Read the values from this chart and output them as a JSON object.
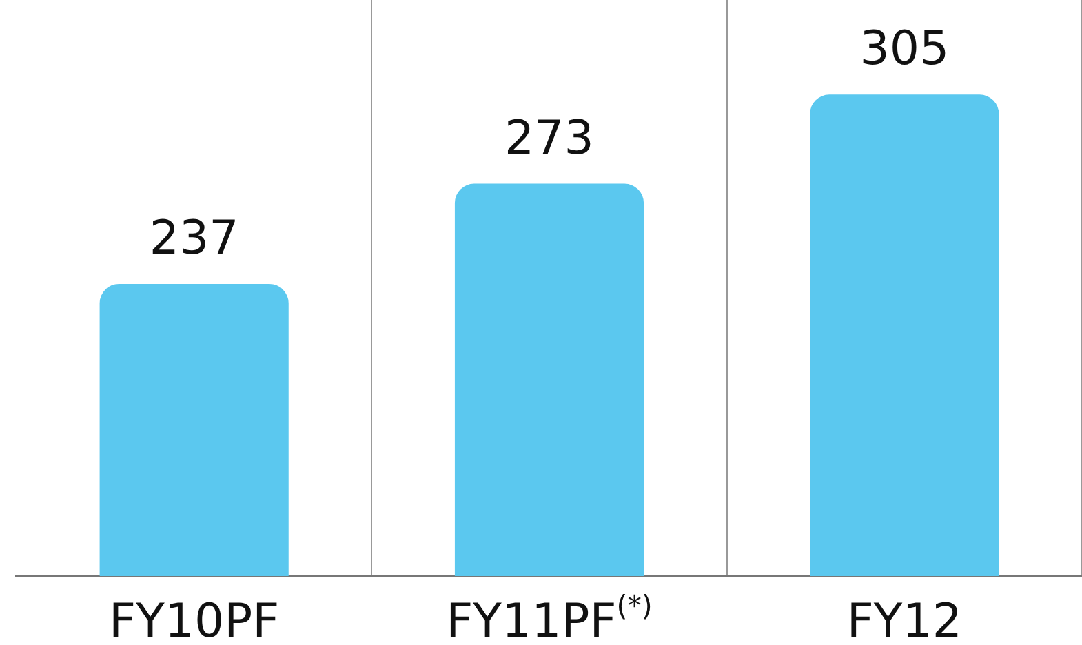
{
  "chart_data": {
    "type": "bar",
    "categories": [
      "FY10PF",
      "FY11PF$^{(*)}$",
      "FY12"
    ],
    "values": [
      237,
      273,
      305
    ],
    "color": "#5bc8ef",
    "ylim": [
      132,
      339
    ],
    "data_labels": true,
    "grid": "x",
    "tick_labels": "x",
    "legend": false
  }
}
